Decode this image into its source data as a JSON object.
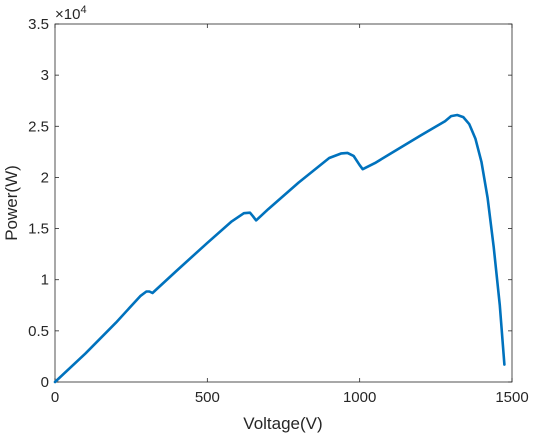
{
  "chart_data": {
    "type": "line",
    "xlabel": "Voltage(V)",
    "ylabel": "Power(W)",
    "y_multiplier": "×10",
    "y_exponent": "4",
    "xlim": [
      0,
      1500
    ],
    "ylim": [
      0,
      3.5
    ],
    "xticks": [
      0,
      500,
      1000,
      1500
    ],
    "xtick_labels": [
      "0",
      "500",
      "1000",
      "1500"
    ],
    "yticks": [
      0,
      0.5,
      1,
      1.5,
      2,
      2.5,
      3,
      3.5
    ],
    "ytick_labels": [
      "0",
      "0.5",
      "1",
      "1.5",
      "2",
      "2.5",
      "3",
      "3.5"
    ],
    "grid": false,
    "line_color": "#0072BD",
    "series": [
      {
        "x": [
          0,
          100,
          200,
          280,
          300,
          310,
          320,
          400,
          500,
          580,
          620,
          640,
          650,
          660,
          700,
          800,
          900,
          940,
          960,
          980,
          1000,
          1010,
          1050,
          1100,
          1200,
          1280,
          1300,
          1320,
          1340,
          1360,
          1380,
          1400,
          1420,
          1440,
          1460,
          1475
        ],
        "y": [
          0,
          0.28,
          0.58,
          0.84,
          0.885,
          0.885,
          0.87,
          1.09,
          1.36,
          1.57,
          1.65,
          1.655,
          1.62,
          1.58,
          1.69,
          1.95,
          2.19,
          2.235,
          2.24,
          2.21,
          2.12,
          2.08,
          2.14,
          2.23,
          2.41,
          2.55,
          2.6,
          2.61,
          2.59,
          2.52,
          2.38,
          2.15,
          1.8,
          1.32,
          0.75,
          0.17
        ]
      }
    ]
  }
}
